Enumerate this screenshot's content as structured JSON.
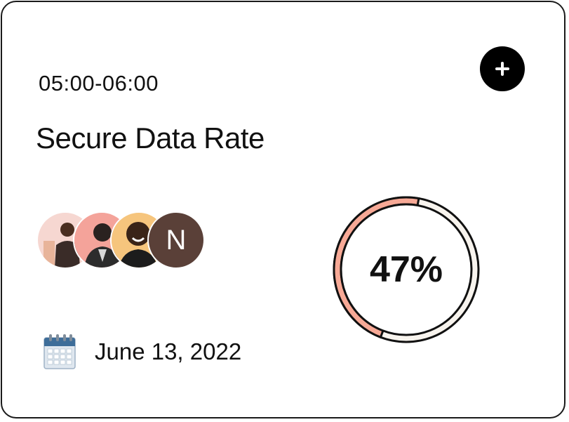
{
  "card": {
    "time_range": "05:00-06:00",
    "title": "Secure Data Rate",
    "date": "June 13, 2022",
    "progress": {
      "percent_label": "47%",
      "fraction": 0.47
    },
    "avatars": {
      "initial_label": "N"
    }
  },
  "colors": {
    "progress_fill": "#f7a996",
    "progress_track": "#f8f4ee",
    "button_bg": "#000000",
    "initial_avatar_bg": "#5a4038"
  },
  "icons": {
    "add": "plus-icon",
    "date": "calendar-icon"
  }
}
